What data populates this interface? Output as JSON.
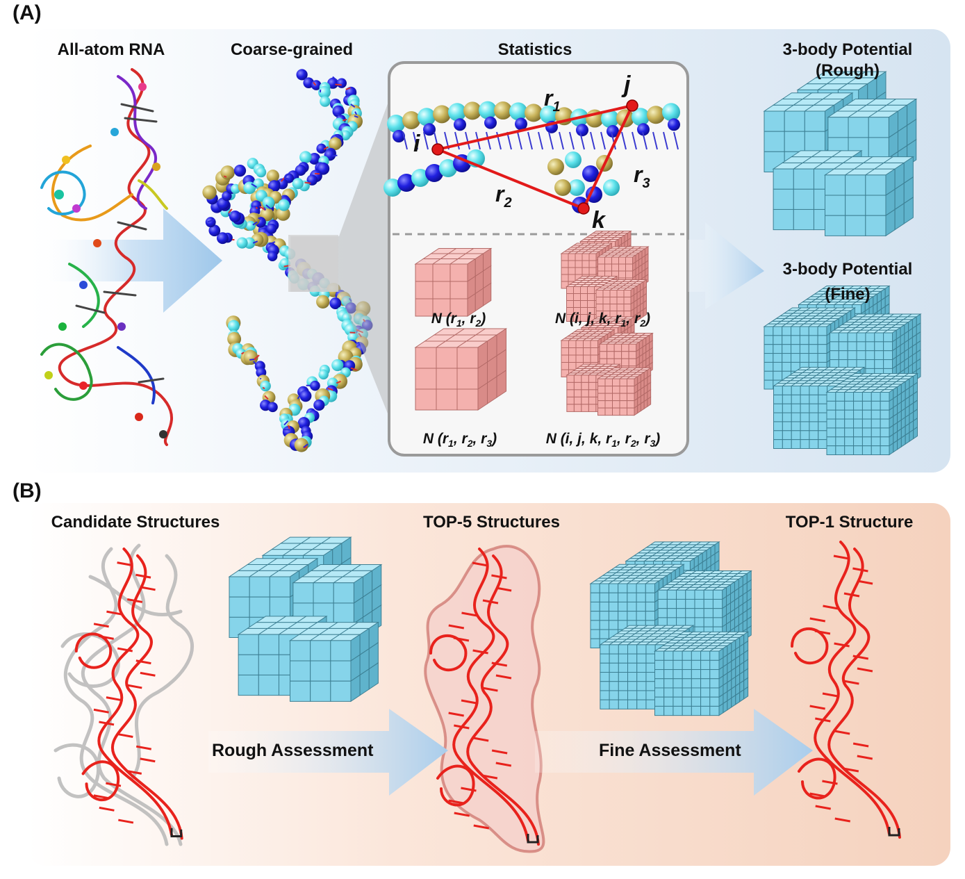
{
  "panels": {
    "a": {
      "label": "(A)",
      "titles": {
        "all_atom": "All-atom RNA",
        "coarse": "Coarse-grained",
        "statistics": "Statistics",
        "rough_line1": "3-body Potential",
        "rough_line2": "(Rough)",
        "fine_line1": "3-body Potential",
        "fine_line2": "(Fine)"
      },
      "triangle": {
        "i": "i",
        "j": "j",
        "k": "k",
        "r1": "r",
        "r1_sub": "1",
        "r2": "r",
        "r2_sub": "2",
        "r3": "r",
        "r3_sub": "3"
      },
      "formulas": {
        "f1": "N (r1, r2)",
        "f2": "N (i, j, k, r1, r2)",
        "f3": "N (r1, r2, r3)",
        "f4": "N (i, j, k, r1, r2, r3)"
      }
    },
    "b": {
      "label": "(B)",
      "titles": {
        "candidate": "Candidate  Structures",
        "top5": "TOP-5 Structures",
        "top1": "TOP-1 Structure"
      },
      "arrows": {
        "rough": "Rough Assessment",
        "fine": "Fine Assessment"
      }
    }
  },
  "colors": {
    "cube_blue": "#7fd0e8",
    "cube_pink": "#f4aaa8",
    "rna_red": "#e8221c",
    "panel_a_bg": "#dbe7f3",
    "panel_b_bg": "#f6d6c4"
  }
}
